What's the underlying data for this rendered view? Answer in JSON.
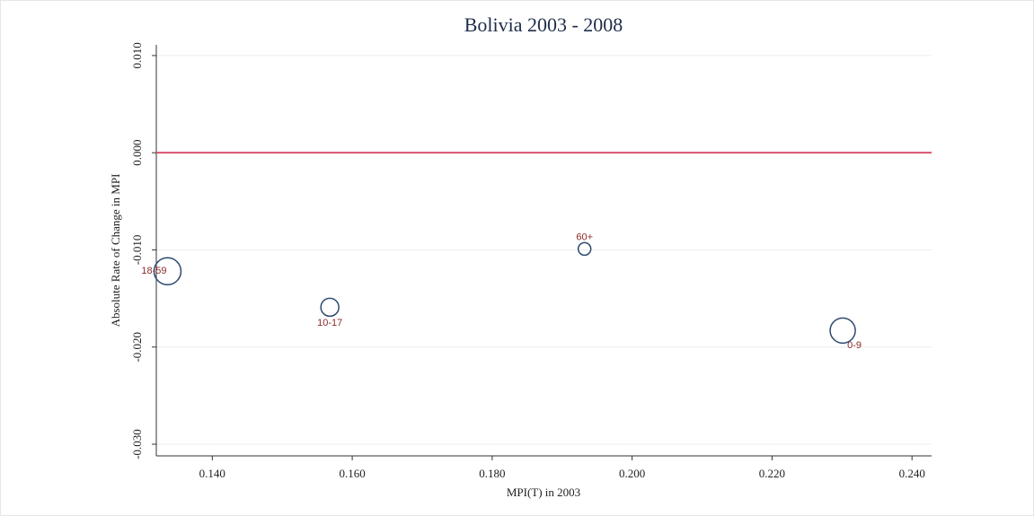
{
  "chart_data": {
    "type": "scatter",
    "title": "Bolivia 2003 - 2008",
    "x_label": "MPI(T) in 2003",
    "y_label": "Absolute Rate of Change in MPI",
    "labels": [
      "18-59",
      "10-17",
      "60+",
      "0-9"
    ],
    "x": [
      0.1336,
      0.1568,
      0.1932,
      0.2301
    ],
    "values": [
      -0.0122,
      -0.0159,
      -0.0099,
      -0.0183
    ],
    "sizes": [
      15,
      10,
      7,
      14
    ],
    "color": "#2e4a6e",
    "label_color": "#8b2a2a",
    "reference_line": {
      "y": 0,
      "color": "#d9536b"
    },
    "xlim": [
      0.132,
      0.2428
    ],
    "ylim": [
      -0.0312,
      0.0111
    ],
    "xticks": [
      {
        "value": 0.14,
        "label": "0.140"
      },
      {
        "value": 0.16,
        "label": "0.160"
      },
      {
        "value": 0.18,
        "label": "0.180"
      },
      {
        "value": 0.2,
        "label": "0.200"
      },
      {
        "value": 0.22,
        "label": "0.220"
      },
      {
        "value": 0.24,
        "label": "0.240"
      }
    ],
    "yticks": [
      {
        "value": 0.01,
        "label": "0.010"
      },
      {
        "value": 0,
        "label": "0.000"
      },
      {
        "value": -0.01,
        "label": "-0.010"
      },
      {
        "value": -0.02,
        "label": "-0.020"
      },
      {
        "value": -0.03,
        "label": "-0.030"
      }
    ],
    "grid": true
  }
}
